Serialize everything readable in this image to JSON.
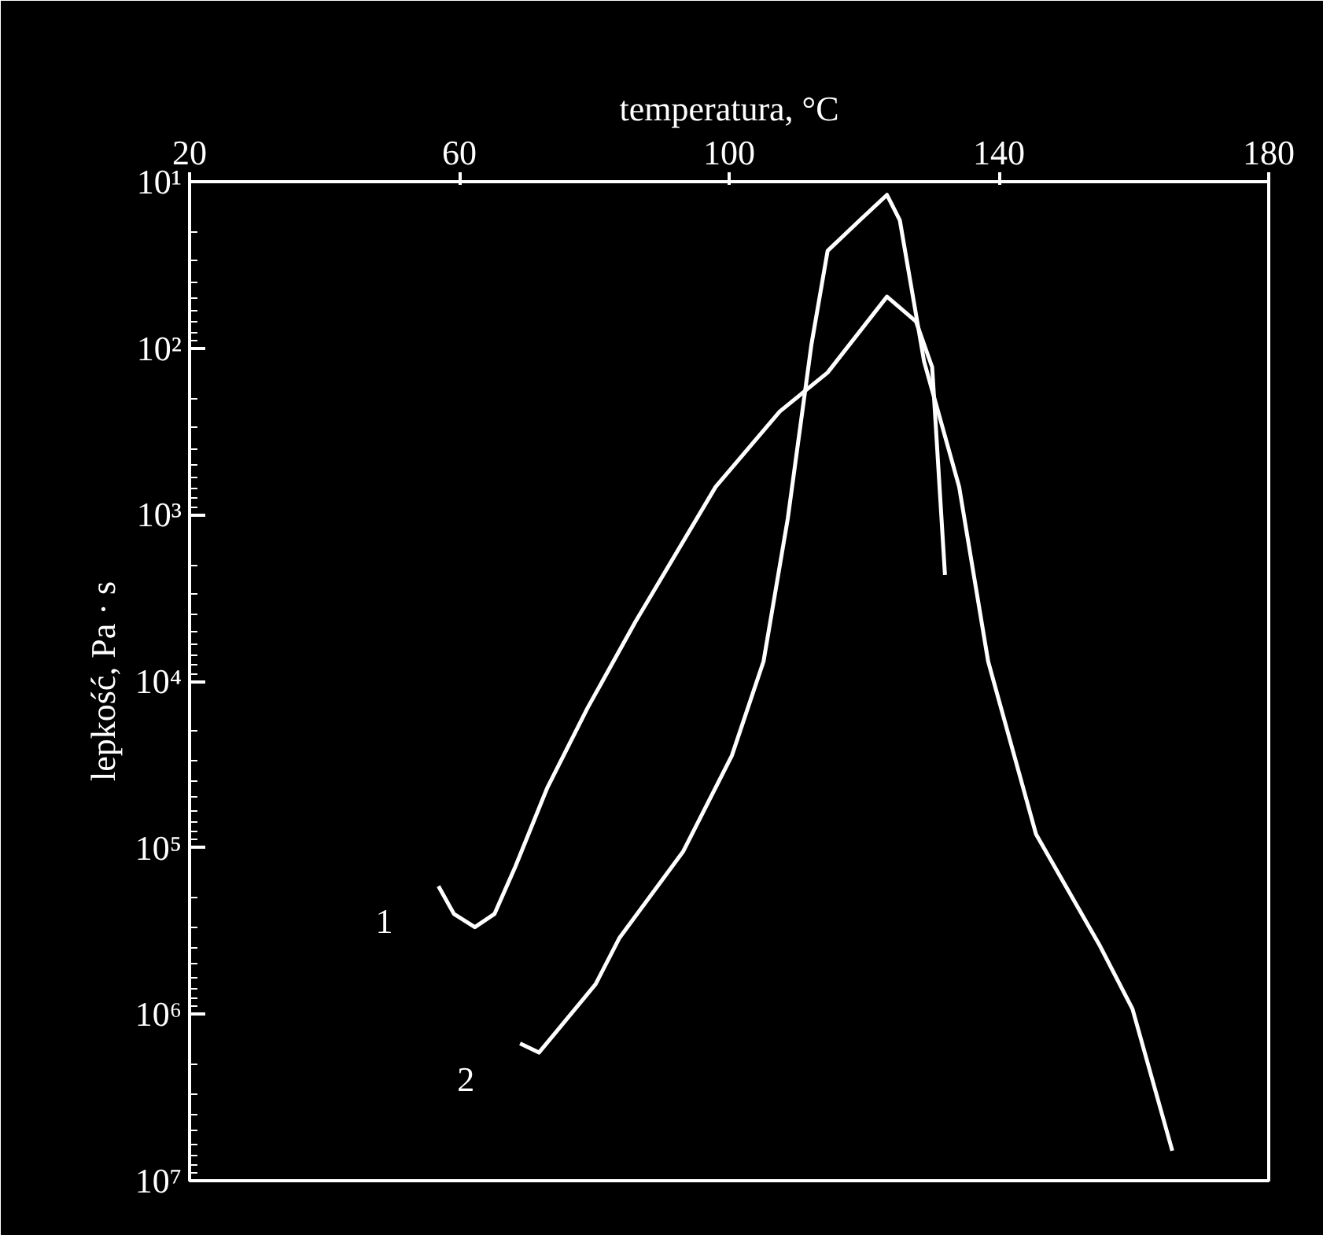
{
  "chart_data": {
    "type": "line",
    "xlabel": "temperatura, °C",
    "ylabel": "lepkość, Pa · s",
    "log": "y",
    "grid": false,
    "marker": "none",
    "line_style": "solid",
    "xlim": [
      20,
      180
    ],
    "xticks": [
      20,
      60,
      100,
      140,
      180
    ],
    "ylim": [
      10000000,
      10
    ],
    "yticks": [
      {
        "value": 10,
        "label": "10¹"
      },
      {
        "value": 100,
        "label": "10²"
      },
      {
        "value": 1000,
        "label": "10³"
      },
      {
        "value": 10000,
        "label": "10⁴"
      },
      {
        "value": 100000,
        "label": "10⁵"
      },
      {
        "value": 1000000,
        "label": "10⁶"
      },
      {
        "value": 10000000,
        "label": "10⁷"
      }
    ],
    "series": [
      {
        "name": "1",
        "color": "#ffffff",
        "x": [
          56.9,
          59.2,
          62.3,
          65.2,
          68.3,
          73.0,
          79.0,
          86.1,
          98.0,
          107.5,
          114.6,
          123.4,
          127.7,
          130.1,
          132.0
        ],
        "values": [
          170000,
          250000,
          300000,
          250000,
          130000,
          44000,
          14500,
          4400,
          680,
          240,
          140,
          49,
          69,
          130,
          2300
        ]
      },
      {
        "name": "2",
        "color": "#ffffff",
        "x": [
          69.0,
          71.8,
          74.2,
          80.2,
          83.7,
          93.2,
          100.4,
          105.1,
          108.7,
          112.2,
          114.6,
          119.4,
          123.4,
          125.3,
          128.9,
          134.1,
          138.4,
          145.5,
          155.0,
          159.8,
          165.7
        ],
        "values": [
          1500000,
          1700000,
          1300000,
          660000,
          350000,
          105000,
          28000,
          7600,
          1050,
          95,
          26,
          17,
          12,
          17,
          120,
          680,
          7600,
          83000,
          390000,
          930000,
          6600000
        ]
      }
    ]
  }
}
